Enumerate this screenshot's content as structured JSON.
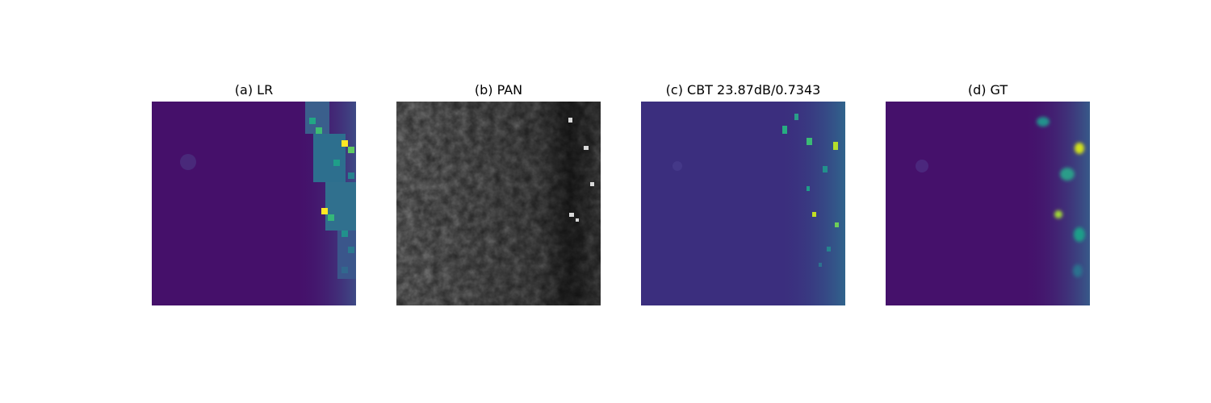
{
  "figure": {
    "panels": [
      {
        "title": "(a) LR"
      },
      {
        "title": "(b) PAN"
      },
      {
        "title": "(c) CBT 23.87dB/0.7343"
      },
      {
        "title": "(d) GT"
      }
    ]
  }
}
